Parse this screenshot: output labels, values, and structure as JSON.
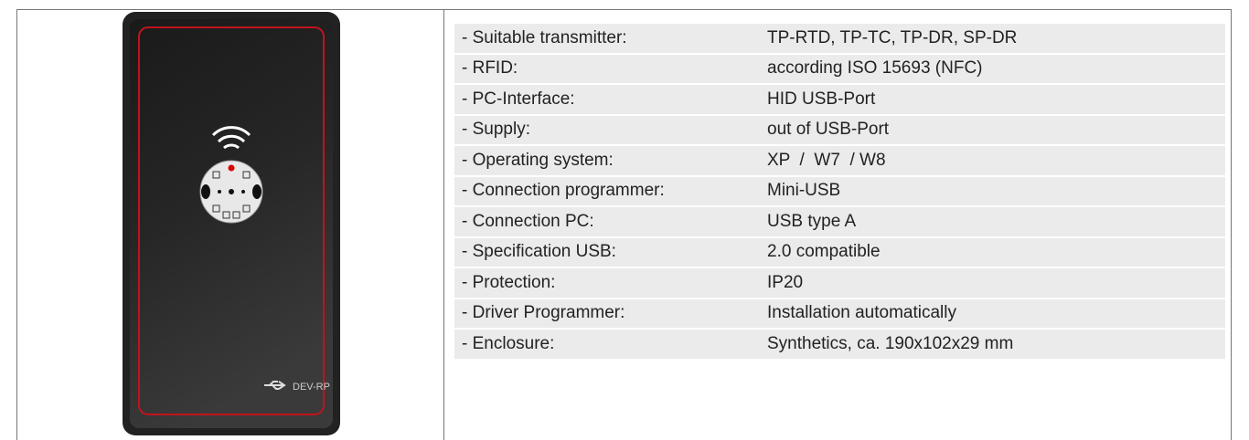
{
  "device": {
    "label": "DEV-RP"
  },
  "table": {
    "rows": [
      [
        "- Suitable transmitter:",
        "TP-RTD, TP-TC, TP-DR, SP-DR"
      ],
      [
        "- RFID:",
        "according ISO 15693 (NFC)"
      ],
      [
        "- PC-Interface:",
        "HID USB-Port"
      ],
      [
        "- Supply:",
        "out of USB-Port"
      ],
      [
        "- Operating system:",
        "XP  /  W7  / W8"
      ],
      [
        "- Connection programmer:",
        "Mini-USB"
      ],
      [
        "- Connection PC:",
        "USB type A"
      ],
      [
        "- Specification USB:",
        "2.0 compatible"
      ],
      [
        "- Protection:",
        "IP20"
      ],
      [
        "- Driver Programmer:",
        "Installation automatically"
      ],
      [
        "- Enclosure:",
        "Synthetics, ca. 190x102x29 mm"
      ]
    ]
  }
}
